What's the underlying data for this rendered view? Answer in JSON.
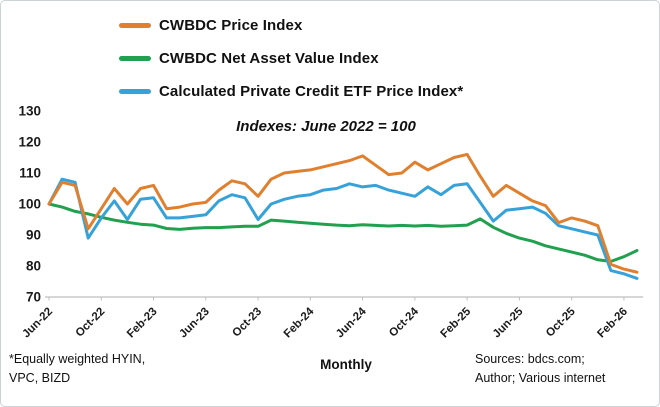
{
  "chart_data": {
    "type": "line",
    "title": "",
    "annotation": "Indexes: June 2022 = 100",
    "xlabel": "Monthly",
    "ylabel": "",
    "ylim": [
      70,
      130
    ],
    "y_ticks": [
      70,
      80,
      90,
      100,
      110,
      120,
      130
    ],
    "x_tick_every": 4,
    "grid": false,
    "legend_position": "top-left",
    "x": [
      "Jun-22",
      "Jul-22",
      "Aug-22",
      "Sep-22",
      "Oct-22",
      "Nov-22",
      "Dec-22",
      "Jan-23",
      "Feb-23",
      "Mar-23",
      "Apr-23",
      "May-23",
      "Jun-23",
      "Jul-23",
      "Aug-23",
      "Sep-23",
      "Oct-23",
      "Nov-23",
      "Dec-23",
      "Jan-24",
      "Feb-24",
      "Mar-24",
      "Apr-24",
      "May-24",
      "Jun-24",
      "Jul-24",
      "Aug-24",
      "Sep-24",
      "Oct-24",
      "Nov-24",
      "Dec-24",
      "Jan-25",
      "Feb-25",
      "Mar-25",
      "Apr-25",
      "May-25",
      "Jun-25",
      "Jul-25",
      "Aug-25",
      "Sep-25",
      "Oct-25",
      "Nov-25",
      "Dec-25",
      "Jan-26",
      "Feb-26",
      "Mar-26"
    ],
    "x_tick_labels": [
      "Jun-22",
      "Oct-22",
      "Feb-23",
      "Jun-23",
      "Oct-23",
      "Feb-24",
      "Jun-24",
      "Oct-24",
      "Feb-25",
      "Jun-25",
      "Oct-25",
      "Feb-26"
    ],
    "series": [
      {
        "name": "CWBDC Price Index",
        "color": "#E0802F",
        "values": [
          100,
          107,
          106,
          92,
          98.5,
          105,
          100,
          105,
          106,
          98.5,
          99,
          100,
          100.5,
          104.5,
          107.5,
          106.5,
          102.5,
          108,
          110,
          110.5,
          111,
          112,
          113,
          114,
          115.5,
          112.5,
          109.5,
          110,
          113.5,
          111,
          113,
          115,
          116,
          109,
          102.5,
          106,
          103.5,
          101,
          99.5,
          94,
          95.5,
          94.5,
          93,
          80.5,
          79,
          78
        ]
      },
      {
        "name": "CWBDC Net Asset Value Index",
        "color": "#21A04F",
        "values": [
          100,
          99,
          97.6,
          96.8,
          95.7,
          94.8,
          94.1,
          93.5,
          93.2,
          92.1,
          91.8,
          92.2,
          92.4,
          92.4,
          92.6,
          92.8,
          92.8,
          94.8,
          94.5,
          94.1,
          93.8,
          93.5,
          93.2,
          93,
          93.3,
          93.1,
          92.9,
          93.1,
          92.9,
          93.1,
          92.8,
          93,
          93.2,
          95.2,
          92.5,
          90.5,
          89,
          88,
          86.5,
          85.5,
          84.5,
          83.5,
          82,
          81.5,
          83,
          85
        ]
      },
      {
        "name": "Calculated Private Credit ETF Price Index*",
        "color": "#36A2D9",
        "values": [
          100,
          108,
          107,
          89,
          95.5,
          101,
          95,
          101.5,
          102,
          95.5,
          95.5,
          96,
          96.5,
          101,
          103,
          102,
          95,
          100,
          101.5,
          102.5,
          103,
          104.5,
          105,
          106.5,
          105.5,
          106,
          104.5,
          103.5,
          102.5,
          105.5,
          103,
          106,
          106.5,
          100.5,
          94.5,
          98,
          98.5,
          99,
          97,
          93,
          92,
          91,
          90,
          78.5,
          77.5,
          76
        ]
      }
    ],
    "axis_color": "#BFBFBF",
    "tick_label_color": "#1a1a1a"
  },
  "footnotes": {
    "left_line1": "*Equally weighted HYIN,",
    "left_line2": "VPC, BIZD",
    "center": "Monthly",
    "right_line1": "Sources: bdcs.com;",
    "right_line2": "Author; Various internet"
  }
}
